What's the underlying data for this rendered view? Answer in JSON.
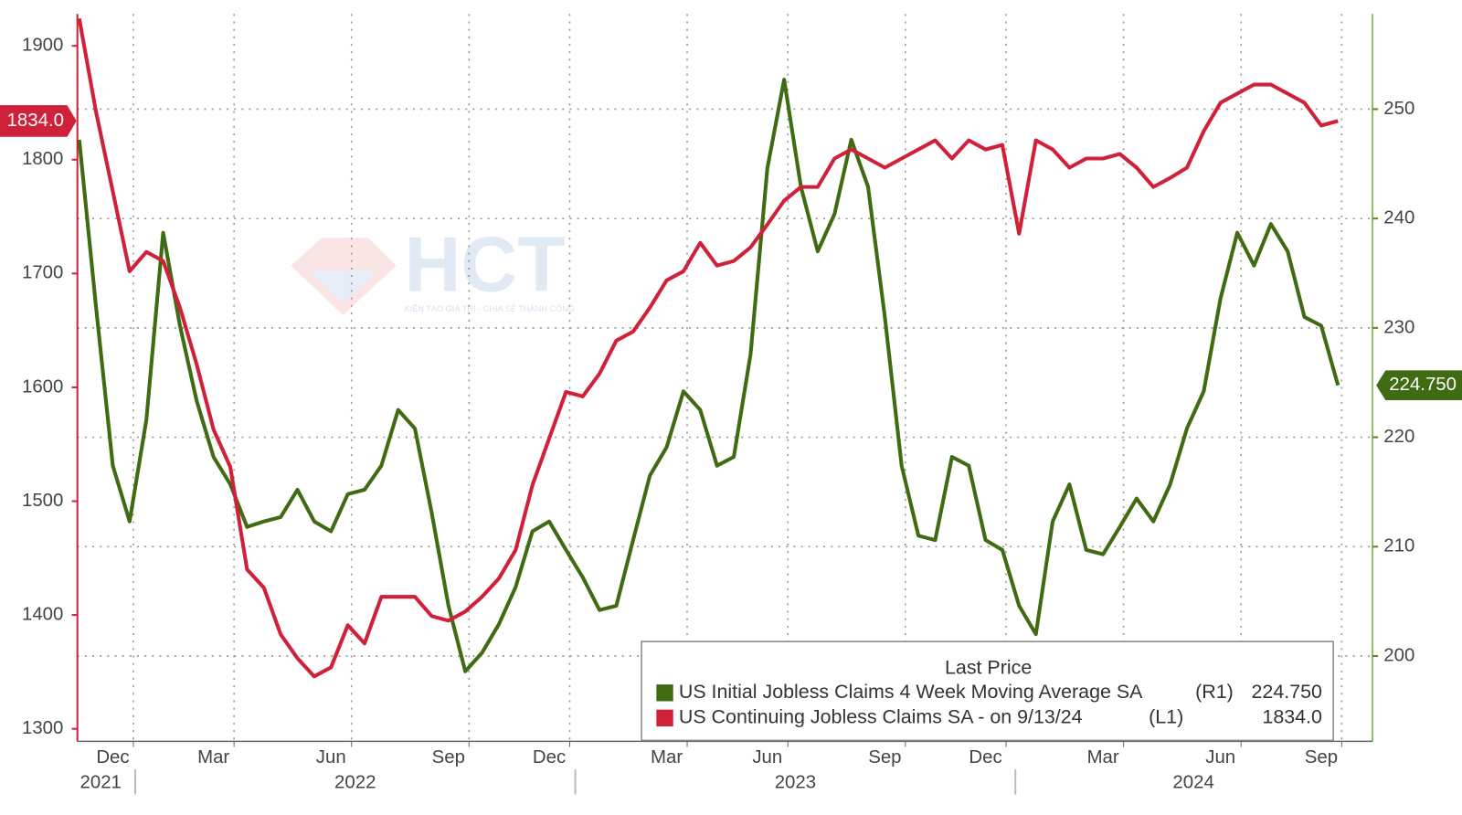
{
  "chart_data": {
    "type": "line",
    "watermark": {
      "text": "HCT",
      "tagline": "KIẾN TẠO GIÁ TRỊ - CHIA SẺ THÀNH CÔNG"
    },
    "legend_title": "Last Price",
    "categories": [
      null,
      null,
      "Dec",
      null,
      null,
      null,
      null,
      null,
      "Mar",
      null,
      null,
      null,
      null,
      null,
      null,
      "Jun",
      null,
      null,
      null,
      null,
      null,
      null,
      "Sep",
      null,
      null,
      null,
      null,
      null,
      "Dec",
      null,
      null,
      null,
      null,
      null,
      null,
      "Mar",
      null,
      null,
      null,
      null,
      null,
      "Jun",
      null,
      null,
      null,
      null,
      null,
      null,
      "Sep",
      null,
      null,
      null,
      null,
      null,
      "Dec",
      null,
      null,
      null,
      null,
      null,
      null,
      "Mar",
      null,
      null,
      null,
      null,
      null,
      null,
      "Jun",
      null,
      null,
      null,
      null,
      null,
      "Sep",
      null
    ],
    "years": [
      "2021",
      "2022",
      "2023",
      "2024"
    ],
    "series": [
      {
        "name": "US Initial Jobless Claims 4 Week Moving Average SA",
        "axis_label": "(R1)",
        "last_label": "224.750",
        "axis": "y2",
        "color": "#3f6b12",
        "values": [
          247.2,
          231.9,
          217.4,
          212.3,
          221.6,
          238.7,
          230.2,
          223.3,
          218.2,
          215.7,
          211.8,
          212.3,
          212.7,
          215.2,
          212.3,
          211.4,
          214.8,
          215.2,
          217.4,
          222.5,
          220.8,
          213.1,
          204.6,
          198.6,
          200.3,
          202.9,
          206.3,
          211.4,
          212.3,
          209.7,
          207.2,
          204.2,
          204.6,
          210.6,
          216.5,
          219.1,
          224.2,
          222.5,
          217.4,
          218.2,
          227.6,
          244.6,
          252.7,
          242.9,
          237.0,
          240.4,
          247.2,
          242.9,
          231.0,
          217.4,
          211.0,
          210.6,
          218.2,
          217.4,
          210.6,
          209.7,
          204.6,
          202.0,
          212.3,
          215.7,
          209.7,
          209.3,
          211.8,
          214.4,
          212.3,
          215.7,
          220.8,
          224.2,
          232.7,
          238.7,
          235.7,
          239.5,
          237.0,
          231.0,
          230.2,
          224.75
        ]
      },
      {
        "name": "US Continuing Jobless Claims SA -  on 9/13/24",
        "axis_label": "(L1)",
        "last_label": "1834.0",
        "axis": "y",
        "color": "#d0213a",
        "values": [
          1924,
          1842,
          1772,
          1702,
          1719,
          1711,
          1670,
          1620,
          1563,
          1530,
          1440,
          1424,
          1383,
          1362,
          1346,
          1354,
          1391,
          1375,
          1416,
          1416,
          1416,
          1399,
          1395,
          1403,
          1416,
          1432,
          1457,
          1514,
          1555,
          1596,
          1592,
          1612,
          1641,
          1649,
          1670,
          1694,
          1702,
          1727,
          1707,
          1711,
          1723,
          1743,
          1764,
          1776,
          1776,
          1801,
          1809,
          1801,
          1793,
          1801,
          1809,
          1817,
          1801,
          1817,
          1809,
          1813,
          1735,
          1817,
          1809,
          1793,
          1801,
          1801,
          1805,
          1793,
          1776,
          1784,
          1793,
          1825,
          1850,
          1858,
          1866,
          1866,
          1858,
          1850,
          1830,
          1834
        ]
      }
    ],
    "ylim": [
      1289,
      1928
    ],
    "yticks": [
      1300,
      1400,
      1500,
      1600,
      1700,
      1800,
      1900
    ],
    "y2lim": [
      192.2,
      258.7
    ],
    "y2ticks": [
      200,
      210,
      220,
      230,
      240,
      250
    ],
    "grid": true
  }
}
